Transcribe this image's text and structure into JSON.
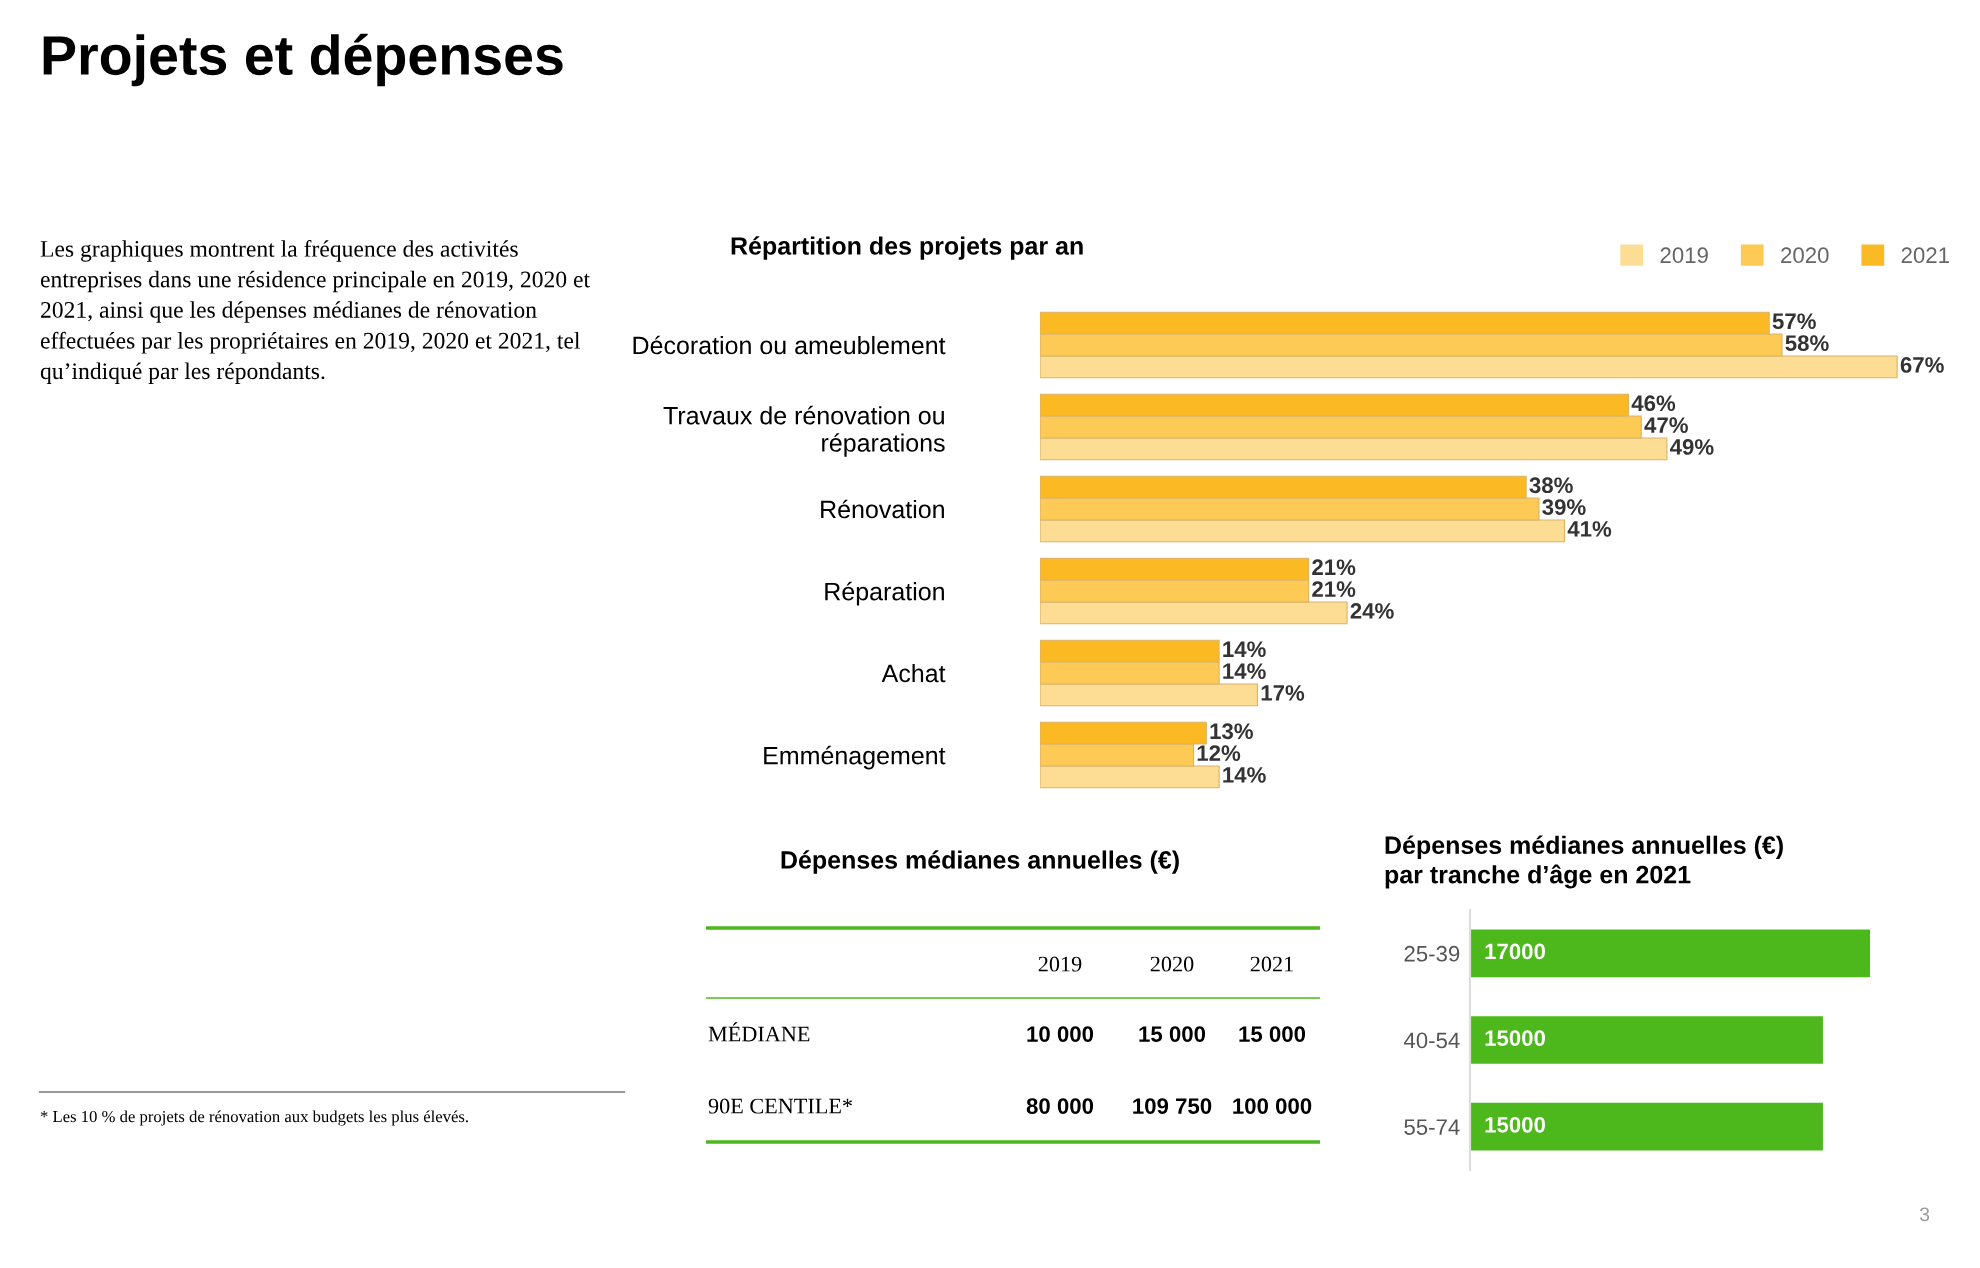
{
  "chart_data": [
    {
      "type": "other",
      "title": "Projets et dépenses",
      "annotations": [
        "Les graphiques montrent la fréquence des activités\nentreprises dans une résidence principale en 2019, 2020 et\n2021, ainsi que les dépenses médianes de rénovation\neffectuées par les propriétaires en 2019, 2020 et 2021, tel\nqu’indiqué par les répondants.",
        "* Les 10 % de projets de rénovation aux budgets les plus élevés.",
        "3"
      ]
    },
    {
      "type": "bar",
      "orientation": "horizontal",
      "title": "Répartition des projets par an",
      "legend": "top right",
      "categories": [
        "Décoration ou ameublement",
        "Travaux de rénovation ou\nréparations",
        "Rénovation",
        "Réparation",
        "Achat",
        "Emménagement"
      ],
      "series": [
        {
          "name": "2019",
          "color": "#fddc94",
          "values": [
            67,
            49,
            41,
            24,
            17,
            14
          ],
          "value_labels": [
            "67%",
            "49%",
            "41%",
            "24%",
            "17%",
            "14%"
          ]
        },
        {
          "name": "2020",
          "color": "#fdca55",
          "values": [
            58,
            47,
            39,
            21,
            14,
            12
          ],
          "value_labels": [
            "58%",
            "47%",
            "39%",
            "21%",
            "14%",
            "12%"
          ]
        },
        {
          "name": "2021",
          "color": "#fbba24",
          "values": [
            57,
            46,
            38,
            21,
            14,
            13
          ],
          "value_labels": [
            "57%",
            "46%",
            "38%",
            "21%",
            "14%",
            "13%"
          ]
        }
      ]
    },
    {
      "type": "other",
      "title": "Dépenses médianes annuelles (€)",
      "categories": [
        "2019",
        "2020",
        "2021"
      ],
      "y_categories": [
        "MÉDIANE",
        "90E CENTILE*"
      ],
      "cell_labels": [
        [
          "10 000",
          "15 000",
          "15 000"
        ],
        [
          "80 000",
          "109 750",
          "100 000"
        ]
      ]
    },
    {
      "type": "bar",
      "orientation": "horizontal",
      "title": "Dépenses médianes annuelles (€)\npar tranche d’âge en 2021",
      "categories": [
        "25-39",
        "40-54",
        "55-74"
      ],
      "values": [
        17000,
        15000,
        15000
      ],
      "color": "#4cb81c",
      "data_labels": true
    }
  ]
}
